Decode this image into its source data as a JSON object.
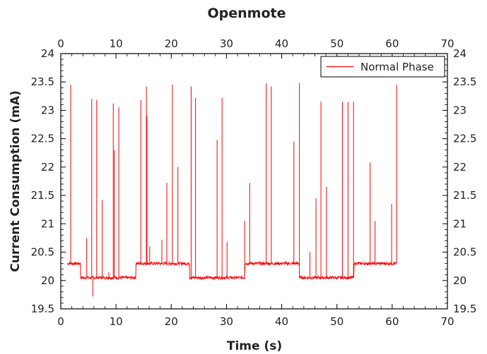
{
  "chart_data": {
    "type": "line",
    "title": "Openmote",
    "xlabel": "Time (s)",
    "ylabel": "Current Consumption (mA)",
    "xlim": [
      0,
      70
    ],
    "ylim": [
      19.5,
      24
    ],
    "xticks": [
      0,
      10,
      20,
      30,
      40,
      50,
      60,
      70
    ],
    "yticks": [
      19.5,
      20,
      20.5,
      21,
      21.5,
      22,
      22.5,
      23,
      23.5,
      24
    ],
    "top_axis_ticks": [
      0,
      10,
      20,
      30,
      40,
      50,
      60,
      70
    ],
    "right_axis_ticks": [
      19.5,
      20,
      20.5,
      21,
      21.5,
      22,
      22.5,
      23,
      23.5,
      24
    ],
    "grid": false,
    "legend_position": "top-right",
    "colors": {
      "series": "#ff0000",
      "axis": "#000000",
      "background": "#ffffff"
    },
    "baseline_segments": [
      {
        "x": [
          1.2,
          3.6
        ],
        "y": 20.3
      },
      {
        "x": [
          3.6,
          13.6
        ],
        "y": 20.05
      },
      {
        "x": [
          13.6,
          23.3
        ],
        "y": 20.3
      },
      {
        "x": [
          23.3,
          33.3
        ],
        "y": 20.05
      },
      {
        "x": [
          33.3,
          43.2
        ],
        "y": 20.3
      },
      {
        "x": [
          43.2,
          53.1
        ],
        "y": 20.05
      },
      {
        "x": [
          53.1,
          60.8
        ],
        "y": 20.3
      }
    ],
    "spikes": [
      {
        "x": 1.8,
        "y": 23.45
      },
      {
        "x": 4.7,
        "y": 20.75
      },
      {
        "x": 5.6,
        "y": 23.2
      },
      {
        "x": 5.8,
        "y": 19.72
      },
      {
        "x": 6.5,
        "y": 23.18
      },
      {
        "x": 7.5,
        "y": 21.42
      },
      {
        "x": 8.7,
        "y": 20.15
      },
      {
        "x": 9.5,
        "y": 23.12
      },
      {
        "x": 9.7,
        "y": 22.3
      },
      {
        "x": 10.5,
        "y": 23.05
      },
      {
        "x": 14.5,
        "y": 23.18
      },
      {
        "x": 15.5,
        "y": 23.42
      },
      {
        "x": 15.6,
        "y": 22.9
      },
      {
        "x": 16.1,
        "y": 20.6
      },
      {
        "x": 18.3,
        "y": 20.72
      },
      {
        "x": 19.2,
        "y": 21.72
      },
      {
        "x": 20.2,
        "y": 23.45
      },
      {
        "x": 21.2,
        "y": 22.0
      },
      {
        "x": 23.6,
        "y": 23.42
      },
      {
        "x": 24.4,
        "y": 23.22
      },
      {
        "x": 28.3,
        "y": 22.48
      },
      {
        "x": 29.2,
        "y": 23.22
      },
      {
        "x": 30.1,
        "y": 20.68
      },
      {
        "x": 33.3,
        "y": 21.05
      },
      {
        "x": 34.2,
        "y": 21.72
      },
      {
        "x": 37.2,
        "y": 23.48
      },
      {
        "x": 38.1,
        "y": 23.42
      },
      {
        "x": 42.2,
        "y": 22.45
      },
      {
        "x": 43.2,
        "y": 23.48
      },
      {
        "x": 45.1,
        "y": 20.5
      },
      {
        "x": 46.2,
        "y": 21.45
      },
      {
        "x": 47.1,
        "y": 23.15
      },
      {
        "x": 48.1,
        "y": 21.65
      },
      {
        "x": 51.0,
        "y": 23.15
      },
      {
        "x": 52.0,
        "y": 23.15
      },
      {
        "x": 53.0,
        "y": 23.15
      },
      {
        "x": 56.0,
        "y": 22.08
      },
      {
        "x": 56.9,
        "y": 21.05
      },
      {
        "x": 59.9,
        "y": 21.35
      },
      {
        "x": 60.8,
        "y": 23.45
      }
    ],
    "series": [
      {
        "name": "Normal Phase",
        "color": "#ff0000"
      }
    ]
  }
}
